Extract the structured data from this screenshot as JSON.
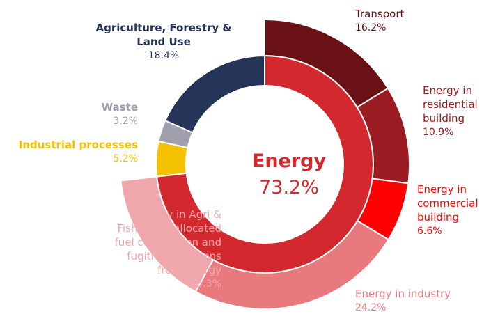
{
  "chart_data": {
    "type": "sunburst",
    "inner": {
      "categories": [
        "Energy",
        "Industrial processes",
        "Waste",
        "Agriculture, Forestry & Land Use"
      ],
      "values": [
        73.2,
        5.2,
        3.2,
        18.4
      ],
      "value_labels": [
        "73.2%",
        "5.2%",
        "3.2%",
        "18.4%"
      ],
      "colors": [
        "#d3282e",
        "#f4c200",
        "#a09fae",
        "#253559"
      ]
    },
    "outer": {
      "categories": [
        "Transport",
        "Energy in residential building",
        "Energy in commercial building",
        "Energy in industry",
        "Energy in Agri & Fishing, unallocated fuel combustion and fugitive emissions from energy"
      ],
      "values": [
        16.2,
        10.9,
        6.6,
        24.2,
        15.3
      ],
      "value_labels": [
        "16.2%",
        "10.9%",
        "6.6%",
        "24.2%",
        "15.3%"
      ],
      "colors": [
        "#6a1116",
        "#9a1c22",
        "#ff0000",
        "#e8797d",
        "#f0a7ab"
      ]
    }
  }
}
